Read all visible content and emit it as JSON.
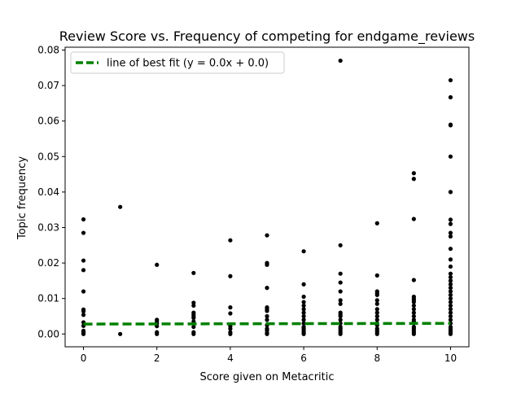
{
  "chart_data": {
    "type": "scatter",
    "title": "Review Score vs. Frequency of competing for endgame_reviews",
    "xlabel": "Score given on Metacritic",
    "ylabel": "Topic frequency",
    "xlim": [
      -0.5,
      10.5
    ],
    "ylim": [
      -0.0036,
      0.0808
    ],
    "x_ticks": [
      0,
      2,
      4,
      6,
      8,
      10
    ],
    "x_tick_labels": [
      "0",
      "2",
      "4",
      "6",
      "8",
      "10"
    ],
    "y_ticks": [
      0.0,
      0.01,
      0.02,
      0.03,
      0.04,
      0.05,
      0.06,
      0.07,
      0.08
    ],
    "y_tick_labels": [
      "0.00",
      "0.01",
      "0.02",
      "0.03",
      "0.04",
      "0.05",
      "0.06",
      "0.07",
      "0.08"
    ],
    "grid": false,
    "legend": {
      "placement": "top-left",
      "entries": [
        {
          "label": "line of best fit (y = 0.0x + 0.0)",
          "style": "dashed-line"
        }
      ]
    },
    "series": [
      {
        "type": "scatter",
        "color": "#000000",
        "points": [
          [
            0,
            0.0
          ],
          [
            0,
            0.0003
          ],
          [
            0,
            0.0006
          ],
          [
            0,
            0.0009
          ],
          [
            0,
            0.0023
          ],
          [
            0,
            0.0033
          ],
          [
            0,
            0.0054
          ],
          [
            0,
            0.0064
          ],
          [
            0,
            0.0069
          ],
          [
            0,
            0.012
          ],
          [
            0,
            0.018
          ],
          [
            0,
            0.0207
          ],
          [
            0,
            0.0285
          ],
          [
            0,
            0.0323
          ],
          [
            1,
            0.0
          ],
          [
            1,
            0.0358
          ],
          [
            2,
            0.0
          ],
          [
            2,
            0.0005
          ],
          [
            2,
            0.0022
          ],
          [
            2,
            0.003
          ],
          [
            2,
            0.0035
          ],
          [
            2,
            0.004
          ],
          [
            2,
            0.0195
          ],
          [
            3,
            0.0
          ],
          [
            3,
            0.0005
          ],
          [
            3,
            0.002
          ],
          [
            3,
            0.0035
          ],
          [
            3,
            0.0045
          ],
          [
            3,
            0.005
          ],
          [
            3,
            0.0055
          ],
          [
            3,
            0.006
          ],
          [
            3,
            0.008
          ],
          [
            3,
            0.0088
          ],
          [
            3,
            0.0172
          ],
          [
            4,
            0.0
          ],
          [
            4,
            0.0005
          ],
          [
            4,
            0.0015
          ],
          [
            4,
            0.0022
          ],
          [
            4,
            0.0058
          ],
          [
            4,
            0.0075
          ],
          [
            4,
            0.0163
          ],
          [
            4,
            0.0264
          ],
          [
            5,
            0.0
          ],
          [
            5,
            0.0003
          ],
          [
            5,
            0.001
          ],
          [
            5,
            0.0015
          ],
          [
            5,
            0.0025
          ],
          [
            5,
            0.004
          ],
          [
            5,
            0.005
          ],
          [
            5,
            0.0065
          ],
          [
            5,
            0.007
          ],
          [
            5,
            0.0075
          ],
          [
            5,
            0.013
          ],
          [
            5,
            0.0195
          ],
          [
            5,
            0.02
          ],
          [
            5,
            0.0278
          ],
          [
            6,
            0.0
          ],
          [
            6,
            0.0005
          ],
          [
            6,
            0.001
          ],
          [
            6,
            0.0015
          ],
          [
            6,
            0.002
          ],
          [
            6,
            0.003
          ],
          [
            6,
            0.004
          ],
          [
            6,
            0.005
          ],
          [
            6,
            0.006
          ],
          [
            6,
            0.007
          ],
          [
            6,
            0.008
          ],
          [
            6,
            0.009
          ],
          [
            6,
            0.0105
          ],
          [
            6,
            0.014
          ],
          [
            6,
            0.0233
          ],
          [
            7,
            0.0
          ],
          [
            7,
            0.0005
          ],
          [
            7,
            0.001
          ],
          [
            7,
            0.0015
          ],
          [
            7,
            0.002
          ],
          [
            7,
            0.003
          ],
          [
            7,
            0.004
          ],
          [
            7,
            0.005
          ],
          [
            7,
            0.0055
          ],
          [
            7,
            0.006
          ],
          [
            7,
            0.0085
          ],
          [
            7,
            0.0095
          ],
          [
            7,
            0.012
          ],
          [
            7,
            0.0145
          ],
          [
            7,
            0.017
          ],
          [
            7,
            0.025
          ],
          [
            7,
            0.077
          ],
          [
            8,
            0.0
          ],
          [
            8,
            0.0005
          ],
          [
            8,
            0.001
          ],
          [
            8,
            0.0015
          ],
          [
            8,
            0.0025
          ],
          [
            8,
            0.003
          ],
          [
            8,
            0.004
          ],
          [
            8,
            0.005
          ],
          [
            8,
            0.006
          ],
          [
            8,
            0.007
          ],
          [
            8,
            0.0085
          ],
          [
            8,
            0.0095
          ],
          [
            8,
            0.011
          ],
          [
            8,
            0.0115
          ],
          [
            8,
            0.012
          ],
          [
            8,
            0.0165
          ],
          [
            8,
            0.0312
          ],
          [
            9,
            0.0
          ],
          [
            9,
            0.0005
          ],
          [
            9,
            0.001
          ],
          [
            9,
            0.0015
          ],
          [
            9,
            0.002
          ],
          [
            9,
            0.003
          ],
          [
            9,
            0.0035
          ],
          [
            9,
            0.004
          ],
          [
            9,
            0.005
          ],
          [
            9,
            0.006
          ],
          [
            9,
            0.007
          ],
          [
            9,
            0.008
          ],
          [
            9,
            0.009
          ],
          [
            9,
            0.0095
          ],
          [
            9,
            0.01
          ],
          [
            9,
            0.0105
          ],
          [
            9,
            0.0152
          ],
          [
            9,
            0.0324
          ],
          [
            9,
            0.0437
          ],
          [
            9,
            0.0453
          ],
          [
            10,
            0.0
          ],
          [
            10,
            0.0005
          ],
          [
            10,
            0.001
          ],
          [
            10,
            0.0015
          ],
          [
            10,
            0.002
          ],
          [
            10,
            0.003
          ],
          [
            10,
            0.004
          ],
          [
            10,
            0.005
          ],
          [
            10,
            0.006
          ],
          [
            10,
            0.007
          ],
          [
            10,
            0.008
          ],
          [
            10,
            0.009
          ],
          [
            10,
            0.01
          ],
          [
            10,
            0.011
          ],
          [
            10,
            0.012
          ],
          [
            10,
            0.013
          ],
          [
            10,
            0.014
          ],
          [
            10,
            0.015
          ],
          [
            10,
            0.016
          ],
          [
            10,
            0.017
          ],
          [
            10,
            0.019
          ],
          [
            10,
            0.021
          ],
          [
            10,
            0.024
          ],
          [
            10,
            0.0275
          ],
          [
            10,
            0.0285
          ],
          [
            10,
            0.031
          ],
          [
            10,
            0.0322
          ],
          [
            10,
            0.04
          ],
          [
            10,
            0.05
          ],
          [
            10,
            0.0588
          ],
          [
            10,
            0.059
          ],
          [
            10,
            0.0667
          ],
          [
            10,
            0.0715
          ]
        ]
      },
      {
        "type": "line",
        "style": "dashed",
        "color": "#008000",
        "x": [
          0,
          10
        ],
        "y": [
          0.0028,
          0.003
        ]
      }
    ]
  }
}
